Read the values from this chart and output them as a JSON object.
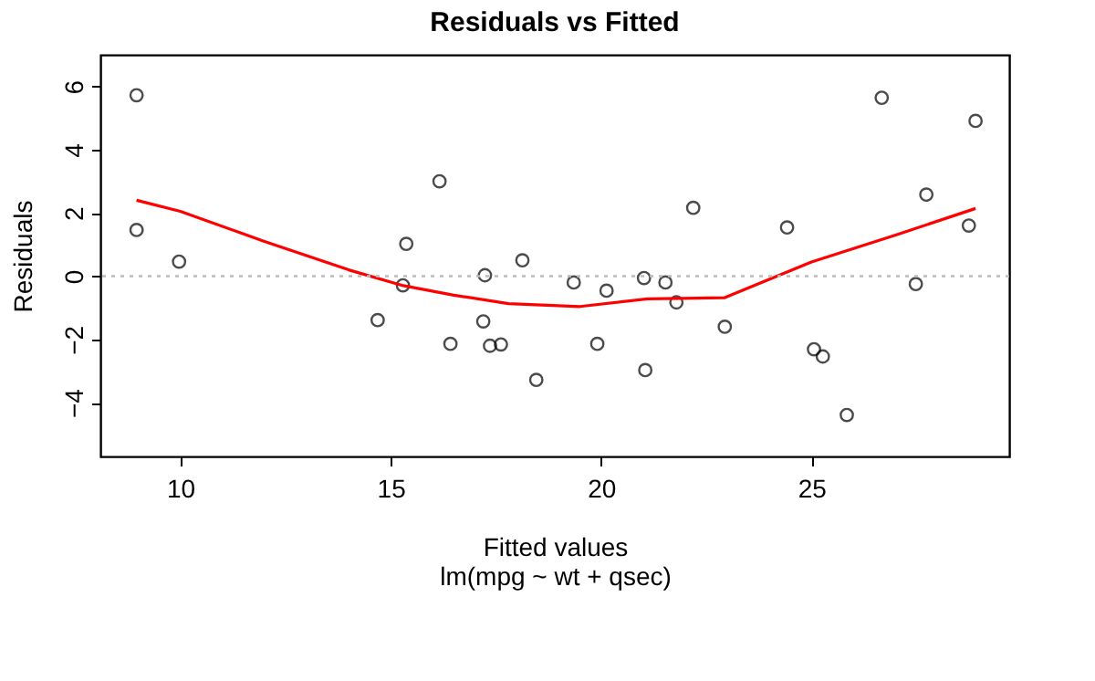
{
  "chart_data": {
    "type": "scatter",
    "title": "Residuals vs Fitted",
    "xlabel": "Fitted values",
    "ylabel": "Residuals",
    "annotations": [
      "lm(mpg ~ wt + qsec)"
    ],
    "xlim": [
      8.1,
      29.7
    ],
    "ylim": [
      -5.7,
      7.0
    ],
    "xticks": [
      10,
      15,
      20,
      25
    ],
    "yticks": [
      -4,
      -2,
      0,
      2,
      4,
      6
    ],
    "grid": false,
    "legend": false,
    "marker": "circle",
    "ref_lines": [
      {
        "axis": "y",
        "value": 0,
        "color": "#bbbbbb",
        "line_style": "dotted"
      }
    ],
    "series": [
      {
        "color": "#000000",
        "x": [
          8.96,
          8.96,
          9.97,
          14.69,
          15.29,
          15.37,
          16.16,
          16.42,
          17.2,
          17.24,
          17.36,
          17.62,
          18.13,
          18.46,
          19.35,
          20.13,
          19.91,
          21.02,
          21.05,
          21.53,
          21.79,
          22.19,
          22.94,
          24.42,
          25.06,
          25.27,
          25.84,
          26.67,
          27.48,
          27.73,
          28.9,
          28.74
        ],
        "values": [
          5.72,
          1.46,
          0.46,
          -1.39,
          -0.29,
          1.02,
          3.0,
          -2.14,
          -1.43,
          0.03,
          -2.2,
          -2.16,
          0.5,
          -3.28,
          -0.2,
          -0.46,
          -2.14,
          -0.06,
          -2.97,
          -0.2,
          -0.83,
          2.16,
          -1.6,
          1.54,
          -2.31,
          -2.54,
          -4.39,
          5.64,
          -0.25,
          2.58,
          4.91,
          1.6
        ]
      },
      {
        "type": "line",
        "color": "#ff0000",
        "line_style": "solid",
        "marker": "none",
        "x": [
          8.96,
          10,
          12,
          14,
          15.3,
          16.5,
          17.8,
          19.5,
          21.1,
          22.94,
          25,
          27,
          28.9
        ],
        "values": [
          2.4,
          2.05,
          1.1,
          0.2,
          -0.3,
          -0.6,
          -0.87,
          -0.96,
          -0.72,
          -0.68,
          0.45,
          1.3,
          2.14
        ]
      }
    ]
  }
}
